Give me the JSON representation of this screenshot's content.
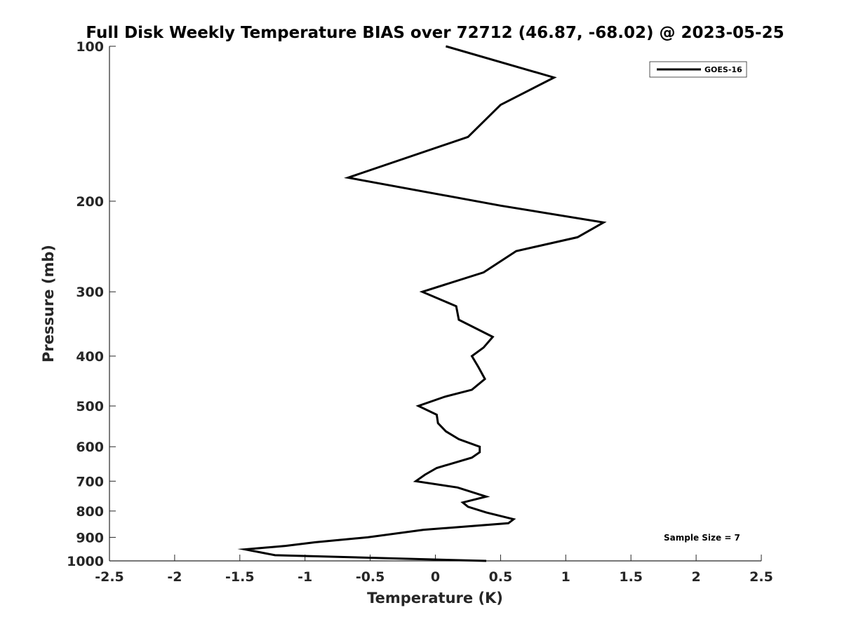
{
  "chart_data": {
    "type": "line",
    "title": "Full Disk Weekly Temperature BIAS over 72712 (46.87, -68.02) @ 2023-05-25",
    "xlabel": "Temperature (K)",
    "ylabel": "Pressure (mb)",
    "xlim": [
      -2.5,
      2.5
    ],
    "ylim": [
      100,
      1000
    ],
    "y_scale": "log",
    "y_reversed": true,
    "x_ticks": [
      "-2.5",
      "-2",
      "-1.5",
      "-1",
      "-0.5",
      "0",
      "0.5",
      "1",
      "1.5",
      "2",
      "2.5"
    ],
    "x_tick_values": [
      -2.5,
      -2,
      -1.5,
      -1,
      -0.5,
      0,
      0.5,
      1,
      1.5,
      2,
      2.5
    ],
    "y_ticks": [
      "100",
      "200",
      "300",
      "400",
      "500",
      "600",
      "700",
      "800",
      "900",
      "1000"
    ],
    "y_tick_values": [
      100,
      200,
      300,
      400,
      500,
      600,
      700,
      800,
      900,
      1000
    ],
    "grid": false,
    "legend_position": "top-right",
    "annotation": "Sample Size = 7",
    "series": [
      {
        "name": "GOES-16",
        "color": "#000000",
        "points": [
          {
            "x": 0.08,
            "p": 100
          },
          {
            "x": 0.91,
            "p": 115
          },
          {
            "x": 0.5,
            "p": 130
          },
          {
            "x": 0.25,
            "p": 150
          },
          {
            "x": -0.67,
            "p": 180
          },
          {
            "x": 0.5,
            "p": 204
          },
          {
            "x": 1.29,
            "p": 220
          },
          {
            "x": 1.09,
            "p": 235
          },
          {
            "x": 0.62,
            "p": 250
          },
          {
            "x": 0.37,
            "p": 275
          },
          {
            "x": -0.1,
            "p": 300
          },
          {
            "x": 0.16,
            "p": 320
          },
          {
            "x": 0.18,
            "p": 340
          },
          {
            "x": 0.44,
            "p": 367
          },
          {
            "x": 0.37,
            "p": 385
          },
          {
            "x": 0.28,
            "p": 400
          },
          {
            "x": 0.33,
            "p": 420
          },
          {
            "x": 0.38,
            "p": 443
          },
          {
            "x": 0.28,
            "p": 465
          },
          {
            "x": 0.07,
            "p": 480
          },
          {
            "x": -0.13,
            "p": 500
          },
          {
            "x": 0.01,
            "p": 520
          },
          {
            "x": 0.02,
            "p": 540
          },
          {
            "x": 0.08,
            "p": 560
          },
          {
            "x": 0.18,
            "p": 580
          },
          {
            "x": 0.34,
            "p": 600
          },
          {
            "x": 0.34,
            "p": 615
          },
          {
            "x": 0.28,
            "p": 630
          },
          {
            "x": 0.01,
            "p": 660
          },
          {
            "x": -0.08,
            "p": 680
          },
          {
            "x": -0.15,
            "p": 700
          },
          {
            "x": 0.17,
            "p": 720
          },
          {
            "x": 0.39,
            "p": 750
          },
          {
            "x": 0.21,
            "p": 770
          },
          {
            "x": 0.25,
            "p": 785
          },
          {
            "x": 0.39,
            "p": 805
          },
          {
            "x": 0.6,
            "p": 830
          },
          {
            "x": 0.56,
            "p": 845
          },
          {
            "x": -0.09,
            "p": 870
          },
          {
            "x": -0.52,
            "p": 900
          },
          {
            "x": -0.92,
            "p": 920
          },
          {
            "x": -1.15,
            "p": 935
          },
          {
            "x": -1.46,
            "p": 950
          },
          {
            "x": -1.23,
            "p": 975
          },
          {
            "x": 0.39,
            "p": 1000
          }
        ]
      }
    ]
  }
}
